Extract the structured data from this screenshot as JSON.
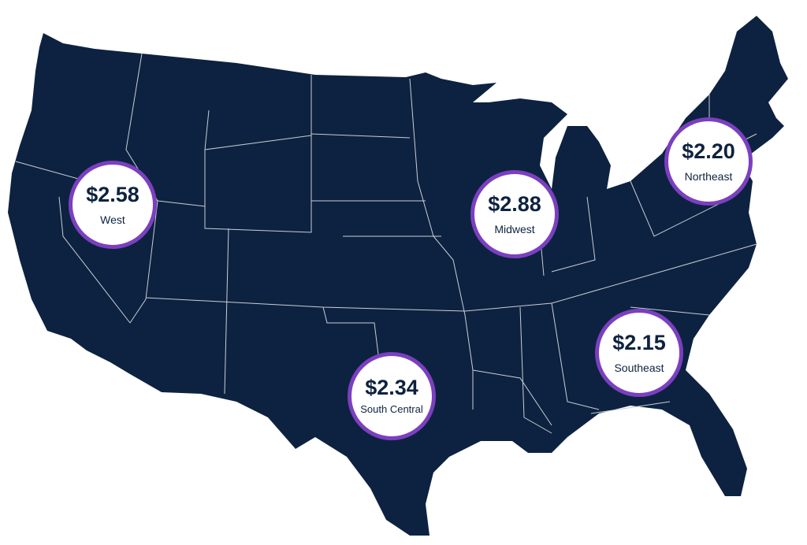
{
  "colors": {
    "land": "#0d2240",
    "borders": "#c9ced6",
    "bubble_ring": "#7b3fc0",
    "bubble_fill": "#ffffff",
    "text": "#0d2240"
  },
  "regions": [
    {
      "name": "West",
      "price": "$2.58"
    },
    {
      "name": "Midwest",
      "price": "$2.88"
    },
    {
      "name": "Northeast",
      "price": "$2.20"
    },
    {
      "name": "Southeast",
      "price": "$2.15"
    },
    {
      "name": "South Central",
      "price": "$2.34"
    }
  ]
}
